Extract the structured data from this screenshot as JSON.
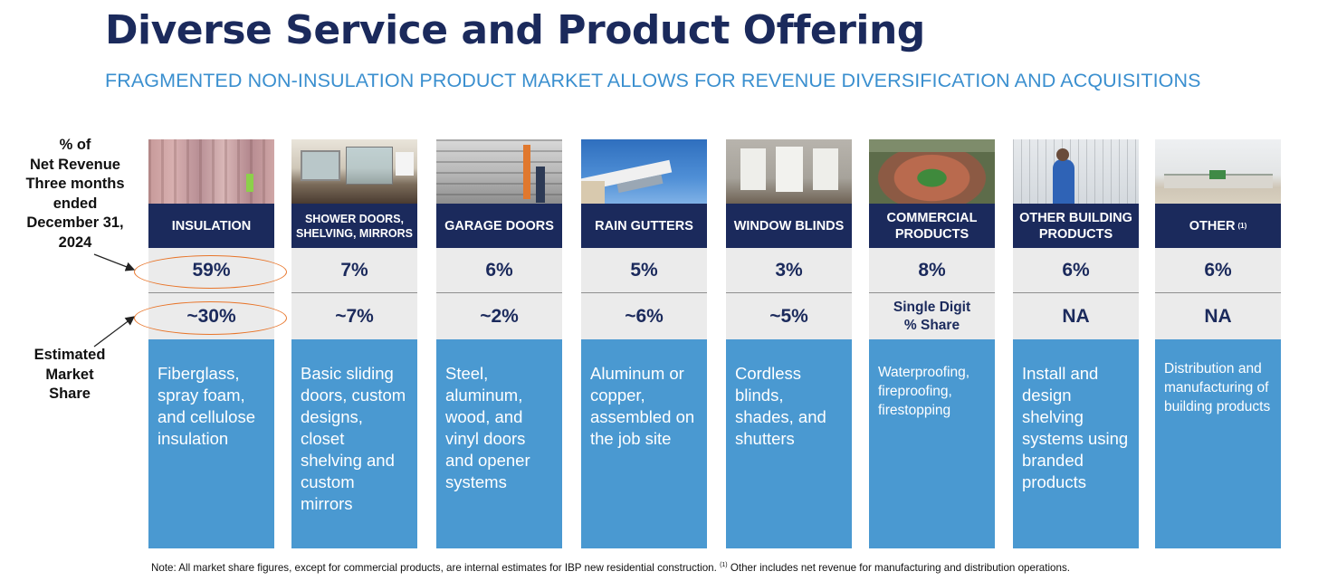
{
  "page": {
    "title": "Diverse Service and Product Offering",
    "subtitle": "FRAGMENTED NON-INSULATION PRODUCT MARKET ALLOWS FOR REVENUE DIVERSIFICATION AND ACQUISITIONS"
  },
  "labels": {
    "revenue": [
      "% of",
      "Net Revenue",
      "Three months",
      "ended",
      "December 31,",
      "2024"
    ],
    "market_share": [
      "Estimated",
      "Market",
      "Share"
    ]
  },
  "columns": [
    {
      "header": "INSULATION",
      "revenue": "59%",
      "share": "~30%",
      "description": "Fiberglass, spray foam, and cellulose insulation",
      "photo": "insulation-photo"
    },
    {
      "header": "SHOWER DOORS, SHELVING, MIRRORS",
      "revenue": "7%",
      "share": "~7%",
      "description": "Basic sliding doors, custom designs, closet shelving and custom mirrors",
      "photo": "shower-doors-photo"
    },
    {
      "header": "GARAGE DOORS",
      "revenue": "6%",
      "share": "~2%",
      "description": "Steel, aluminum, wood, and vinyl doors and opener systems",
      "photo": "garage-doors-photo"
    },
    {
      "header": "RAIN GUTTERS",
      "revenue": "5%",
      "share": "~6%",
      "description": "Aluminum or copper, assembled on the job site",
      "photo": "rain-gutters-photo"
    },
    {
      "header": "WINDOW BLINDS",
      "revenue": "3%",
      "share": "~5%",
      "description": "Cordless blinds, shades, and shutters",
      "photo": "window-blinds-photo"
    },
    {
      "header": "COMMERCIAL PRODUCTS",
      "revenue": "8%",
      "share": "Single Digit % Share",
      "description": "Waterproofing, fireproofing, firestopping",
      "photo": "stadium-photo"
    },
    {
      "header": "OTHER BUILDING PRODUCTS",
      "revenue": "6%",
      "share": "NA",
      "description": "Install and design shelving systems using branded products",
      "photo": "shelving-install-photo"
    },
    {
      "header": "OTHER",
      "header_sup": "(1)",
      "revenue": "6%",
      "share": "NA",
      "description": "Distribution and manufacturing of building products",
      "photo": "warehouse-photo"
    }
  ],
  "footnote": {
    "main": "Note: All market share figures, except for commercial products, are internal estimates for IBP new residential construction.",
    "sup": "(1)",
    "rest": "Other includes net revenue for manufacturing and distribution operations."
  },
  "colors": {
    "navy": "#1b2a5c",
    "blue": "#4a99d1",
    "gray": "#ebebeb",
    "highlight_oval": "#e8752a"
  }
}
